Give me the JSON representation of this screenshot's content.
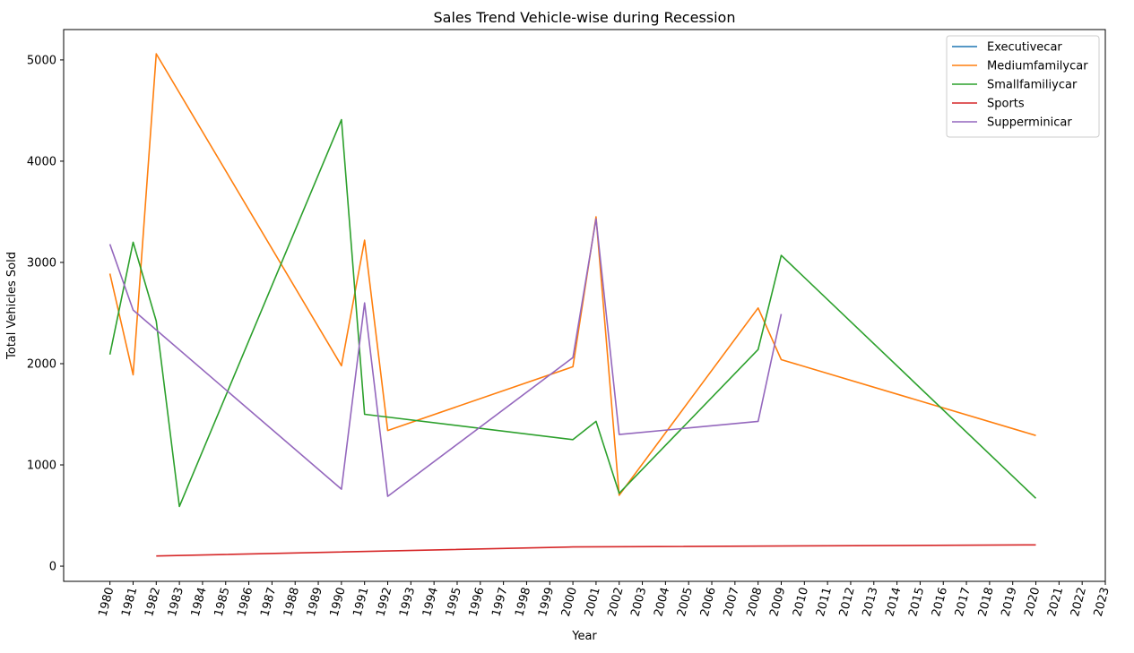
{
  "chart_data": {
    "type": "line",
    "title": "Sales Trend Vehicle-wise during Recession",
    "xlabel": "Year",
    "ylabel": "Total Vehicles Sold",
    "xlim": [
      1978,
      2023
    ],
    "ylim": [
      -150,
      5300
    ],
    "x_ticks": [
      1980,
      1981,
      1982,
      1983,
      1984,
      1985,
      1986,
      1987,
      1988,
      1989,
      1990,
      1991,
      1992,
      1993,
      1994,
      1995,
      1996,
      1997,
      1998,
      1999,
      2000,
      2001,
      2002,
      2003,
      2004,
      2005,
      2006,
      2007,
      2008,
      2009,
      2010,
      2011,
      2012,
      2013,
      2014,
      2015,
      2016,
      2017,
      2018,
      2019,
      2020,
      2021,
      2022,
      2023
    ],
    "y_ticks": [
      0,
      1000,
      2000,
      3000,
      4000,
      5000
    ],
    "grid": false,
    "legend_position": "top-right",
    "series": [
      {
        "name": "Executivecar",
        "color": "#1f77b4",
        "points": []
      },
      {
        "name": "Mediumfamilycar",
        "color": "#ff7f0e",
        "points": [
          [
            1980,
            2890
          ],
          [
            1981,
            1890
          ],
          [
            1982,
            5060
          ],
          [
            1990,
            1980
          ],
          [
            1991,
            3220
          ],
          [
            1992,
            1340
          ],
          [
            2000,
            1970
          ],
          [
            2001,
            3450
          ],
          [
            2002,
            700
          ],
          [
            2008,
            2550
          ],
          [
            2009,
            2040
          ],
          [
            2020,
            1290
          ]
        ]
      },
      {
        "name": "Smallfamiliycar",
        "color": "#2ca02c",
        "points": [
          [
            1980,
            2090
          ],
          [
            1981,
            3200
          ],
          [
            1982,
            2420
          ],
          [
            1983,
            590
          ],
          [
            1990,
            4410
          ],
          [
            1991,
            1500
          ],
          [
            2000,
            1250
          ],
          [
            2001,
            1430
          ],
          [
            2002,
            720
          ],
          [
            2008,
            2140
          ],
          [
            2009,
            3070
          ],
          [
            2020,
            670
          ]
        ]
      },
      {
        "name": "Sports",
        "color": "#d62728",
        "points": [
          [
            1982,
            100
          ],
          [
            2000,
            190
          ],
          [
            2020,
            210
          ]
        ]
      },
      {
        "name": "Supperminicar",
        "color": "#9467bd",
        "points": [
          [
            1980,
            3180
          ],
          [
            1981,
            2530
          ],
          [
            1990,
            760
          ],
          [
            1991,
            2600
          ],
          [
            1992,
            690
          ],
          [
            2000,
            2060
          ],
          [
            2001,
            3430
          ],
          [
            2002,
            1300
          ],
          [
            2008,
            1430
          ],
          [
            2009,
            2490
          ]
        ]
      }
    ]
  }
}
